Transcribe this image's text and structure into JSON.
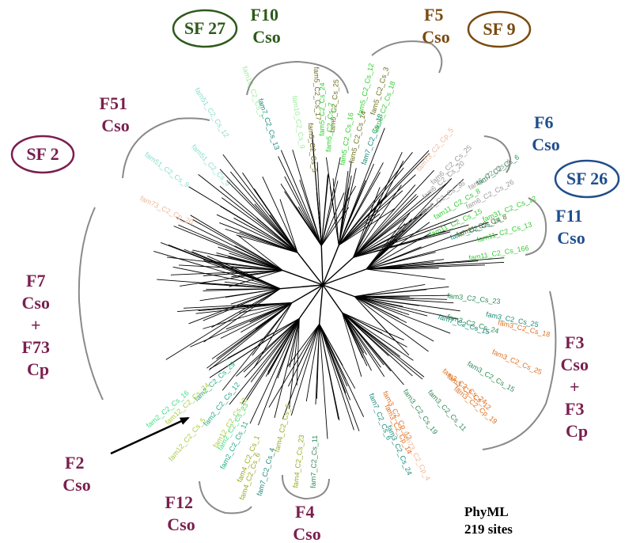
{
  "colors": {
    "maroon": "#7a1f4f",
    "dark_green": "#2d5a1b",
    "brown": "#7a4a10",
    "blue": "#1f4e8c",
    "branch": "#000000",
    "bracket": "#888888"
  },
  "superfamilies": [
    {
      "label": "SF 27",
      "color": "dark_green"
    },
    {
      "label": "SF 9",
      "color": "brown"
    },
    {
      "label": "SF 2",
      "color": "maroon"
    },
    {
      "label": "SF 26",
      "color": "blue"
    }
  ],
  "groups": [
    {
      "lines": [
        "F10",
        "Cso"
      ],
      "color": "dark_green"
    },
    {
      "lines": [
        "F5",
        "Cso"
      ],
      "color": "brown"
    },
    {
      "lines": [
        "F51",
        "Cso"
      ],
      "color": "maroon"
    },
    {
      "lines": [
        "F6",
        "Cso"
      ],
      "color": "blue"
    },
    {
      "lines": [
        "F11",
        "Cso"
      ],
      "color": "blue"
    },
    {
      "lines": [
        "F7",
        "Cso",
        "+",
        "F73",
        "Cp"
      ],
      "color": "maroon"
    },
    {
      "lines": [
        "F3",
        "Cso",
        "+",
        "F3",
        "Cp"
      ],
      "color": "maroon"
    },
    {
      "lines": [
        "F2",
        "Cso"
      ],
      "color": "maroon"
    },
    {
      "lines": [
        "F12",
        "Cso"
      ],
      "color": "maroon"
    },
    {
      "lines": [
        "F4",
        "Cso"
      ],
      "color": "maroon"
    }
  ],
  "method": {
    "line1": "PhyML",
    "line2": "219 sites"
  },
  "leaves": [
    {
      "text": "fam5_C2_Cs_5",
      "color": "#6b6b1f"
    },
    {
      "text": "fam5_C2_Cs_25",
      "color": "#6b6b1f"
    },
    {
      "text": "fam5_C2_Cs_14",
      "color": "#6b6b1f"
    },
    {
      "text": "fam5_C2_Cs_17",
      "color": "#6b6b1f"
    },
    {
      "text": "fam11_C2_Cs_8",
      "color": "#6b6b1f"
    },
    {
      "text": "fam5_C2_Cs_3",
      "color": "#6b6b1f"
    },
    {
      "text": "fam5_C2_Cs_24",
      "color": "#33cc33"
    },
    {
      "text": "fam5_C2_Cs_16",
      "color": "#33cc33"
    },
    {
      "text": "fam5_C2_Cs_18",
      "color": "#33cc33"
    },
    {
      "text": "fam5_C2_Cs_7",
      "color": "#33cc33"
    },
    {
      "text": "fam5_C2_Cs_12",
      "color": "#33cc33"
    },
    {
      "text": "fam6_C2_Cs_25",
      "color": "#999999"
    },
    {
      "text": "fam6_C2_Cs_36",
      "color": "#999999"
    },
    {
      "text": "fam6_C2_Cs_26",
      "color": "#999999"
    },
    {
      "text": "fam6_C2_Cs_20",
      "color": "#999999"
    },
    {
      "text": "fam6_C2_Cs_4",
      "color": "#999999"
    },
    {
      "text": "fam11_C2_Cs_166",
      "color": "#33cc33"
    },
    {
      "text": "fam11_C2_Cs_15",
      "color": "#33cc33"
    },
    {
      "text": "fam11_C2_Cs_13",
      "color": "#33cc33"
    },
    {
      "text": "fam11_C2_Cs_8",
      "color": "#33cc33"
    },
    {
      "text": "fam31_C2_Cs_12",
      "color": "#33cc33"
    },
    {
      "text": "fam10_C2_Cs_9",
      "color": "#99ee99"
    },
    {
      "text": "fam10_C2_Cs_1",
      "color": "#99ee99"
    },
    {
      "text": "fam3_C2_Cs_12",
      "color": "#e07020"
    },
    {
      "text": "fam3_C2_Cp_12",
      "color": "#e07020"
    },
    {
      "text": "fam51_C2_Cs_9",
      "color": "#88ddcc"
    },
    {
      "text": "fam51_C2_Cs_5",
      "color": "#88ddcc"
    },
    {
      "text": "fam51_C2_Cs_12",
      "color": "#88ddcc"
    },
    {
      "text": "fam73_C2_Cp_5",
      "color": "#f0b89a"
    },
    {
      "text": "fam7_C2_Cs_6",
      "color": "#1a8a7a"
    },
    {
      "text": "fam3_C2_Cs_25",
      "color": "#1a8a7a"
    },
    {
      "text": "fam7_C2_Cs_14",
      "color": "#1a8a7a"
    },
    {
      "text": "fam7_C2_Cs_4",
      "color": "#1a8a7a"
    },
    {
      "text": "fam7_C2_Cs_13",
      "color": "#1a8a7a"
    },
    {
      "text": "fam7_C2_Cs_15",
      "color": "#1a8a7a"
    },
    {
      "text": "fam3_C2_Cs_24",
      "color": "#1a8a7a"
    },
    {
      "text": "fam7_C2_Cs_18",
      "color": "#1a8a7a"
    },
    {
      "text": "fam73_C2_Cp_4",
      "color": "#f0b89a"
    },
    {
      "text": "fam73_C2_Cp_20",
      "color": "#f0b89a"
    },
    {
      "text": "fam7_C2_Cs_6",
      "color": "#2e8b57"
    },
    {
      "text": "fam7_C2_Cs_11",
      "color": "#2e8b57"
    },
    {
      "text": "fam3_C2_Cs_24",
      "color": "#2e8b57"
    },
    {
      "text": "fam3_C2_Cp_19",
      "color": "#e07020"
    },
    {
      "text": "fam3_C2_Cp_14",
      "color": "#e07020"
    },
    {
      "text": "fam3_C2_Cs_25",
      "color": "#e07020"
    },
    {
      "text": "fam3_C2_Cs_11",
      "color": "#2e8b57"
    },
    {
      "text": "fam3_C2_Cs_23",
      "color": "#2e8b57"
    },
    {
      "text": "fam3_C2_Cs_15",
      "color": "#2e8b57"
    },
    {
      "text": "fam3_C2_Cs_19",
      "color": "#2e8b57"
    },
    {
      "text": "fam3_C2_Cs_18",
      "color": "#e07020"
    },
    {
      "text": "fam3_C2_Cs_24",
      "color": "#e07020"
    },
    {
      "text": "fam2_C2_Cs_29",
      "color": "#22aa88"
    },
    {
      "text": "fam2_C2_Cs_11",
      "color": "#22aa88"
    },
    {
      "text": "fam2_C2_Cs_12",
      "color": "#22aa88"
    },
    {
      "text": "fam2_C2_Cs_16",
      "color": "#44dd88"
    },
    {
      "text": "fam2_C2_Cs_23",
      "color": "#44dd88"
    },
    {
      "text": "fam4_C2_Cs_6",
      "color": "#99aa22"
    },
    {
      "text": "fam4_C2_Cs_23",
      "color": "#99aa22"
    },
    {
      "text": "fam4_C2_Cs_5",
      "color": "#99aa22"
    },
    {
      "text": "fam4_C2_Cs_1",
      "color": "#99aa22"
    },
    {
      "text": "fam12_C2_Cs_12",
      "color": "#aacc44"
    },
    {
      "text": "fam12_C2_Cs_5",
      "color": "#aacc44"
    },
    {
      "text": "fam12_C2_Cs_24",
      "color": "#aacc44"
    }
  ]
}
